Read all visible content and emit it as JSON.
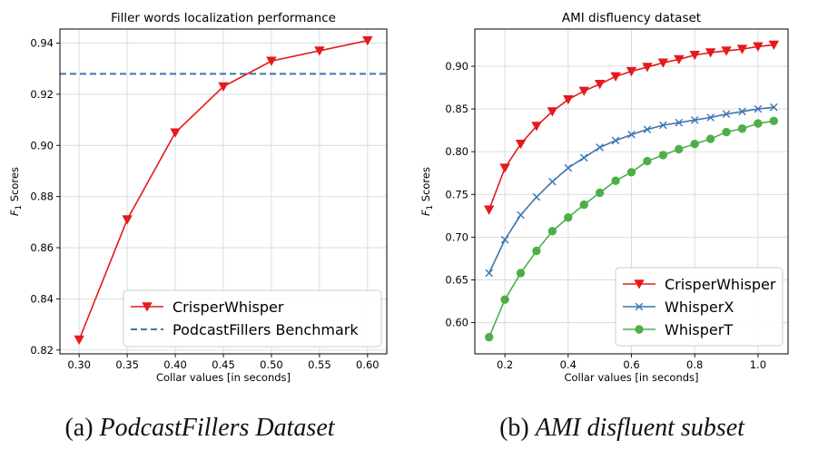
{
  "chart_data": [
    {
      "type": "line",
      "title": "Filler words localization performance",
      "xlabel": "Collar values [in seconds]",
      "ylabel_main": "F",
      "ylabel_sub": "1",
      "ylabel_rest": " Scores",
      "xlim": [
        0.28,
        0.62
      ],
      "ylim": [
        0.8185,
        0.9455
      ],
      "x_ticks": [
        0.3,
        0.35,
        0.4,
        0.45,
        0.5,
        0.55,
        0.6
      ],
      "x_tick_labels": [
        "0.30",
        "0.35",
        "0.40",
        "0.45",
        "0.50",
        "0.55",
        "0.60"
      ],
      "y_ticks": [
        0.82,
        0.84,
        0.86,
        0.88,
        0.9,
        0.92,
        0.94
      ],
      "y_tick_labels": [
        "0.82",
        "0.84",
        "0.86",
        "0.88",
        "0.90",
        "0.92",
        "0.94"
      ],
      "grid": true,
      "legend_position": "lower-right",
      "series": [
        {
          "name": "CrisperWhisper",
          "color": "#e41a1c",
          "marker": "triangle-down",
          "x": [
            0.3,
            0.35,
            0.4,
            0.45,
            0.5,
            0.55,
            0.6
          ],
          "values": [
            0.824,
            0.871,
            0.905,
            0.923,
            0.933,
            0.937,
            0.941
          ]
        }
      ],
      "hlines": [
        {
          "name": "PodcastFillers Benchmark",
          "value": 0.928,
          "color": "#3b75af",
          "style": "dashed"
        }
      ],
      "caption_prefix": "(a) ",
      "caption_italic": "PodcastFillers Dataset"
    },
    {
      "type": "line",
      "title": "AMI disfluency dataset",
      "xlabel": "Collar values [in seconds]",
      "ylabel_main": "F",
      "ylabel_sub": "1",
      "ylabel_rest": " Scores",
      "xlim": [
        0.105,
        1.095
      ],
      "ylim": [
        0.5635,
        0.9435
      ],
      "x_ticks": [
        0.2,
        0.4,
        0.6,
        0.8,
        1.0
      ],
      "x_tick_labels": [
        "0.2",
        "0.4",
        "0.6",
        "0.8",
        "1.0"
      ],
      "y_ticks": [
        0.6,
        0.65,
        0.7,
        0.75,
        0.8,
        0.85,
        0.9
      ],
      "y_tick_labels": [
        "0.60",
        "0.65",
        "0.70",
        "0.75",
        "0.80",
        "0.85",
        "0.90"
      ],
      "grid": true,
      "legend_position": "lower-right",
      "series": [
        {
          "name": "CrisperWhisper",
          "color": "#e41a1c",
          "marker": "triangle-down",
          "x": [
            0.15,
            0.2,
            0.25,
            0.3,
            0.35,
            0.4,
            0.45,
            0.5,
            0.55,
            0.6,
            0.65,
            0.7,
            0.75,
            0.8,
            0.85,
            0.9,
            0.95,
            1.0,
            1.05
          ],
          "values": [
            0.732,
            0.781,
            0.809,
            0.83,
            0.847,
            0.861,
            0.871,
            0.879,
            0.888,
            0.894,
            0.899,
            0.904,
            0.908,
            0.913,
            0.916,
            0.918,
            0.92,
            0.923,
            0.925
          ]
        },
        {
          "name": "WhisperX",
          "color": "#3b75af",
          "marker": "x",
          "x": [
            0.15,
            0.2,
            0.25,
            0.3,
            0.35,
            0.4,
            0.45,
            0.5,
            0.55,
            0.6,
            0.65,
            0.7,
            0.75,
            0.8,
            0.85,
            0.9,
            0.95,
            1.0,
            1.05
          ],
          "values": [
            0.658,
            0.697,
            0.726,
            0.747,
            0.765,
            0.781,
            0.793,
            0.805,
            0.813,
            0.82,
            0.826,
            0.831,
            0.834,
            0.837,
            0.84,
            0.844,
            0.847,
            0.85,
            0.852
          ]
        },
        {
          "name": "WhisperT",
          "color": "#4daf4a",
          "marker": "circle",
          "x": [
            0.15,
            0.2,
            0.25,
            0.3,
            0.35,
            0.4,
            0.45,
            0.5,
            0.55,
            0.6,
            0.65,
            0.7,
            0.75,
            0.8,
            0.85,
            0.9,
            0.95,
            1.0,
            1.05
          ],
          "values": [
            0.583,
            0.627,
            0.658,
            0.684,
            0.707,
            0.723,
            0.738,
            0.752,
            0.766,
            0.776,
            0.789,
            0.796,
            0.803,
            0.809,
            0.815,
            0.823,
            0.827,
            0.833,
            0.836
          ]
        }
      ],
      "hlines": [],
      "caption_prefix": "(b) ",
      "caption_italic": "AMI disfluent subset"
    }
  ]
}
